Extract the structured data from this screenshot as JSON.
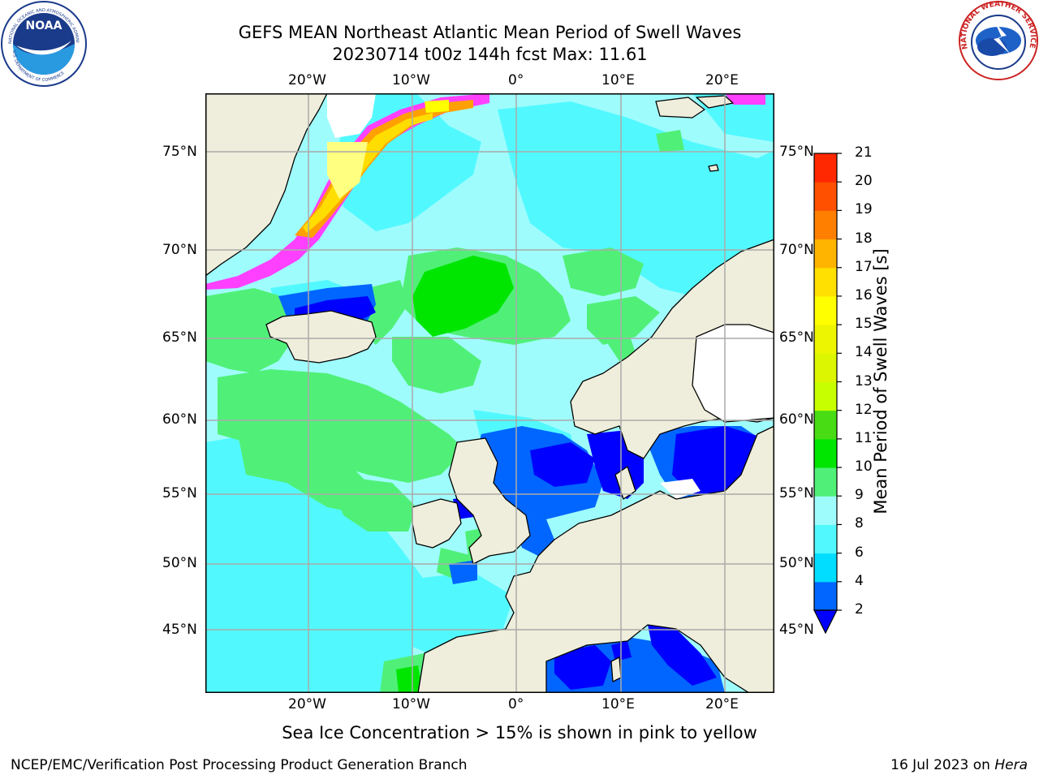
{
  "header": {
    "title_line1": "GEFS MEAN Northeast Atlantic Mean Period of Swell Waves",
    "title_line2": "20230714 t00z 144h fcst   Max: 11.61"
  },
  "logos": {
    "noaa_text": "NOAA",
    "noaa_ring_top": "NATIONAL OCEANIC AND ATMOSPHERIC ADMINISTRATION",
    "noaa_ring_bottom": "U.S. DEPARTMENT OF COMMERCE",
    "nws_ring": "NATIONAL WEATHER SERVICE"
  },
  "map": {
    "lon_labels": [
      "20°W",
      "10°W",
      "0°",
      "10°E",
      "20°E"
    ],
    "lat_labels": [
      "75°N",
      "70°N",
      "65°N",
      "60°N",
      "55°N",
      "50°N",
      "45°N"
    ],
    "colors": {
      "land": "#efeedc",
      "ocean_base": "#9ffcfd",
      "ice": "#ffffff",
      "grid": "#aaaaaa"
    }
  },
  "colorbar": {
    "label": "Mean Period of Swell Waves [s]",
    "ticks": [
      "2",
      "4",
      "6",
      "8",
      "9",
      "10",
      "11",
      "12",
      "13",
      "14",
      "15",
      "16",
      "17",
      "18",
      "19",
      "20",
      "21"
    ],
    "colors": [
      "#0066ff",
      "#00ddff",
      "#51f9ff",
      "#9ffcfd",
      "#50f078",
      "#00e600",
      "#48dc14",
      "#c8ff00",
      "#dcf500",
      "#eef500",
      "#ffff00",
      "#ffe000",
      "#ffb400",
      "#ff8000",
      "#ff5000",
      "#ff2800"
    ],
    "under_color": "#0000ff"
  },
  "note": "Sea Ice Concentration > 15% is shown in pink to yellow",
  "footer": {
    "left": "NCEP/EMC/Verification Post Processing Product Generation Branch",
    "right_date": "16 Jul 2023 on ",
    "right_host": "Hera"
  }
}
